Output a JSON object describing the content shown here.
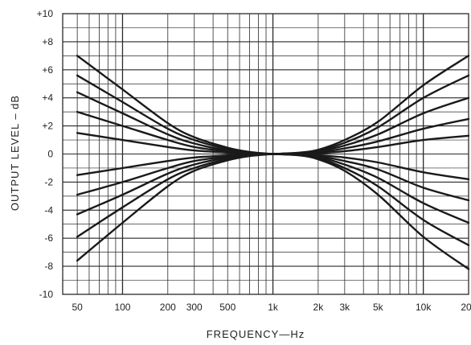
{
  "chart_data": {
    "type": "line",
    "title": "",
    "xlabel": "FREQUENCY—Hz",
    "ylabel": "OUTPUT LEVEL – dB",
    "x_scale": "log",
    "xlim": [
      40,
      20000
    ],
    "ylim": [
      -10,
      10
    ],
    "grid": true,
    "x_ticks": [
      {
        "value": 50,
        "label": "50"
      },
      {
        "value": 100,
        "label": "100"
      },
      {
        "value": 200,
        "label": "200"
      },
      {
        "value": 300,
        "label": "300"
      },
      {
        "value": 500,
        "label": "500"
      },
      {
        "value": 1000,
        "label": "1k"
      },
      {
        "value": 2000,
        "label": "2k"
      },
      {
        "value": 3000,
        "label": "3k"
      },
      {
        "value": 5000,
        "label": "5k"
      },
      {
        "value": 10000,
        "label": "10k"
      },
      {
        "value": 20000,
        "label": "20k"
      }
    ],
    "y_ticks": [
      {
        "value": 10,
        "label": "+10"
      },
      {
        "value": 8,
        "label": "+8"
      },
      {
        "value": 6,
        "label": "+6"
      },
      {
        "value": 4,
        "label": "+4"
      },
      {
        "value": 2,
        "label": "+2"
      },
      {
        "value": 0,
        "label": "0"
      },
      {
        "value": -2,
        "label": "-2"
      },
      {
        "value": -4,
        "label": "-4"
      },
      {
        "value": -6,
        "label": "-6"
      },
      {
        "value": -8,
        "label": "-8"
      },
      {
        "value": -10,
        "label": "-10"
      }
    ],
    "x": [
      50,
      100,
      200,
      300,
      500,
      700,
      1000,
      1500,
      2000,
      3000,
      5000,
      10000,
      20000
    ],
    "series": [
      {
        "side": "bass",
        "values": [
          7.0,
          4.6,
          2.2,
          1.2,
          0.45,
          0.15,
          0.0,
          null,
          null,
          null,
          null,
          null,
          null
        ]
      },
      {
        "side": "bass",
        "values": [
          5.6,
          3.7,
          1.8,
          1.0,
          0.35,
          0.1,
          0.0,
          null,
          null,
          null,
          null,
          null,
          null
        ]
      },
      {
        "side": "bass",
        "values": [
          4.4,
          2.9,
          1.4,
          0.75,
          0.25,
          0.08,
          0.0,
          null,
          null,
          null,
          null,
          null,
          null
        ]
      },
      {
        "side": "bass",
        "values": [
          3.0,
          2.0,
          1.0,
          0.5,
          0.18,
          0.05,
          0.0,
          null,
          null,
          null,
          null,
          null,
          null
        ]
      },
      {
        "side": "bass",
        "values": [
          1.5,
          1.0,
          0.5,
          0.25,
          0.1,
          0.03,
          0.0,
          null,
          null,
          null,
          null,
          null,
          null
        ]
      },
      {
        "side": "bass",
        "values": [
          -1.5,
          -1.0,
          -0.5,
          -0.25,
          -0.1,
          -0.03,
          0.0,
          null,
          null,
          null,
          null,
          null,
          null
        ]
      },
      {
        "side": "bass",
        "values": [
          -2.9,
          -2.0,
          -1.0,
          -0.5,
          -0.18,
          -0.05,
          0.0,
          null,
          null,
          null,
          null,
          null,
          null
        ]
      },
      {
        "side": "bass",
        "values": [
          -4.3,
          -2.9,
          -1.4,
          -0.75,
          -0.25,
          -0.08,
          0.0,
          null,
          null,
          null,
          null,
          null,
          null
        ]
      },
      {
        "side": "bass",
        "values": [
          -5.9,
          -3.8,
          -1.8,
          -1.0,
          -0.35,
          -0.1,
          0.0,
          null,
          null,
          null,
          null,
          null,
          null
        ]
      },
      {
        "side": "bass",
        "values": [
          -7.6,
          -4.9,
          -2.3,
          -1.2,
          -0.45,
          -0.15,
          0.0,
          null,
          null,
          null,
          null,
          null,
          null
        ]
      },
      {
        "side": "treble",
        "values": [
          null,
          null,
          null,
          null,
          null,
          null,
          0.0,
          0.1,
          0.3,
          1.0,
          2.3,
          4.9,
          7.0
        ]
      },
      {
        "side": "treble",
        "values": [
          null,
          null,
          null,
          null,
          null,
          null,
          0.0,
          0.08,
          0.25,
          0.8,
          1.9,
          4.0,
          5.6
        ]
      },
      {
        "side": "treble",
        "values": [
          null,
          null,
          null,
          null,
          null,
          null,
          0.0,
          0.06,
          0.2,
          0.6,
          1.4,
          2.9,
          4.0
        ]
      },
      {
        "side": "treble",
        "values": [
          null,
          null,
          null,
          null,
          null,
          null,
          0.0,
          0.04,
          0.13,
          0.4,
          0.9,
          1.8,
          2.5
        ]
      },
      {
        "side": "treble",
        "values": [
          null,
          null,
          null,
          null,
          null,
          null,
          0.0,
          0.02,
          0.07,
          0.2,
          0.5,
          1.0,
          1.3
        ]
      },
      {
        "side": "treble",
        "values": [
          null,
          null,
          null,
          null,
          null,
          null,
          0.0,
          -0.02,
          -0.08,
          -0.25,
          -0.6,
          -1.3,
          -1.8
        ]
      },
      {
        "side": "treble",
        "values": [
          null,
          null,
          null,
          null,
          null,
          null,
          0.0,
          -0.04,
          -0.15,
          -0.5,
          -1.1,
          -2.4,
          -3.3
        ]
      },
      {
        "side": "treble",
        "values": [
          null,
          null,
          null,
          null,
          null,
          null,
          0.0,
          -0.06,
          -0.22,
          -0.75,
          -1.7,
          -3.5,
          -4.9
        ]
      },
      {
        "side": "treble",
        "values": [
          null,
          null,
          null,
          null,
          null,
          null,
          0.0,
          -0.08,
          -0.3,
          -1.0,
          -2.3,
          -4.7,
          -6.5
        ]
      },
      {
        "side": "treble",
        "values": [
          null,
          null,
          null,
          null,
          null,
          null,
          0.0,
          -0.1,
          -0.38,
          -1.2,
          -2.9,
          -5.9,
          -8.2
        ]
      }
    ],
    "line_color": "#1a1a1a",
    "grid_color": "#2a2a2a"
  }
}
